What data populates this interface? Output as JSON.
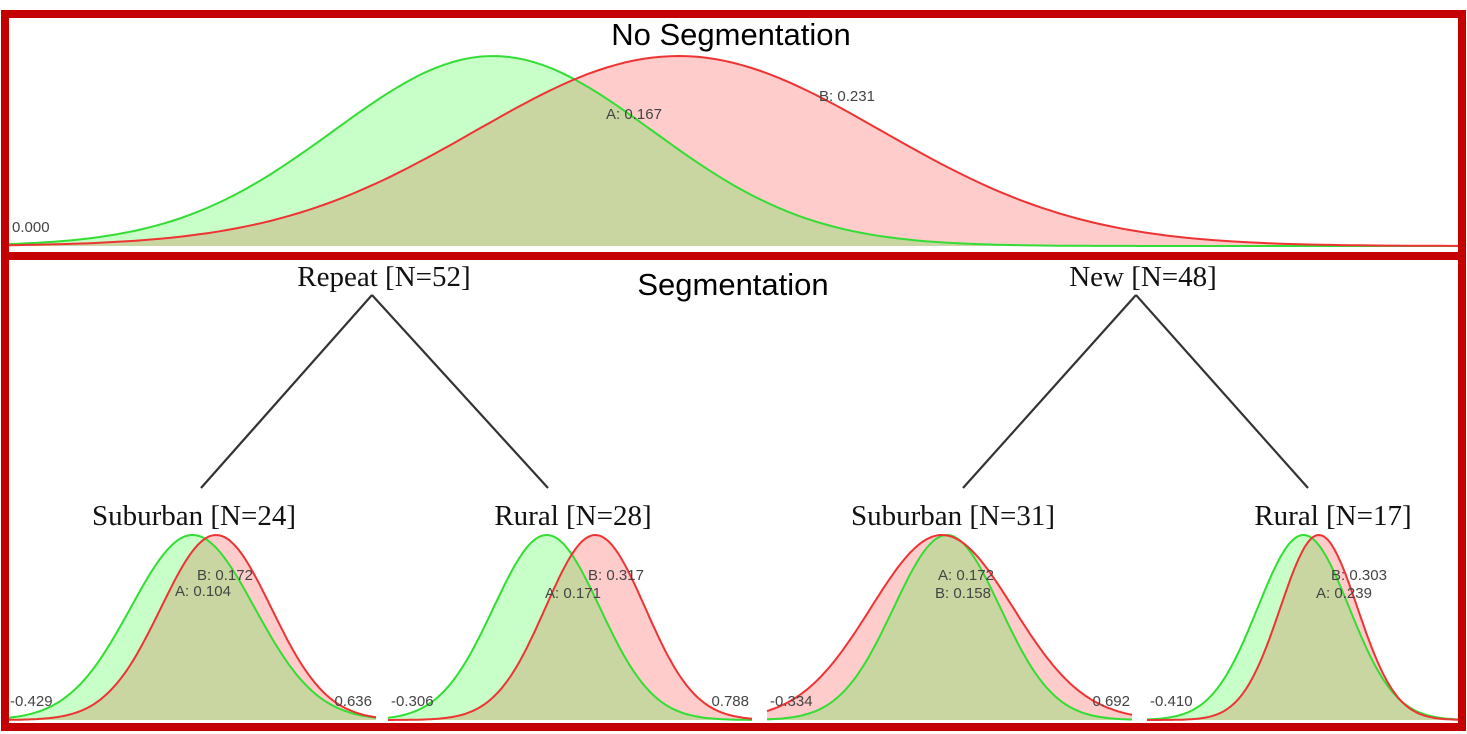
{
  "panels": {
    "top": {
      "title": "No Segmentation"
    },
    "bottom": {
      "title": "Segmentation"
    }
  },
  "tree": {
    "groups": [
      {
        "label": "Repeat [N=52]"
      },
      {
        "label": "New [N=48]"
      }
    ],
    "leaves": [
      {
        "label": "Suburban [N=24]"
      },
      {
        "label": "Rural [N=28]"
      },
      {
        "label": "Suburban [N=31]"
      },
      {
        "label": "Rural [N=17]"
      }
    ]
  },
  "colors": {
    "frame": "#c40000",
    "A_line": "#33dd33",
    "A_fill": "#c8ffc8",
    "B_line": "#ee3333",
    "B_fill": "#ffcccc",
    "overlap_fill": "#c9d6a1"
  },
  "chart_data": [
    {
      "type": "area",
      "title": "No Segmentation",
      "series": [
        {
          "name": "A",
          "mean": 0.167,
          "sd": 0.055,
          "label": "A: 0.167"
        },
        {
          "name": "B",
          "mean": 0.231,
          "sd": 0.07,
          "label": "B: 0.231"
        }
      ],
      "xlim": [
        0.0,
        0.5
      ],
      "tick_labels": [
        "0.000"
      ]
    },
    {
      "type": "area",
      "title": "Suburban [N=24]",
      "series": [
        {
          "name": "A",
          "mean": 0.104,
          "sd": 0.18,
          "label": "A: 0.104"
        },
        {
          "name": "B",
          "mean": 0.172,
          "sd": 0.16,
          "label": "B: 0.172"
        }
      ],
      "xlim": [
        -0.429,
        0.636
      ],
      "tick_labels": [
        "-0.429",
        "0.636"
      ]
    },
    {
      "type": "area",
      "title": "Rural [N=28]",
      "series": [
        {
          "name": "A",
          "mean": 0.171,
          "sd": 0.16,
          "label": "A: 0.171"
        },
        {
          "name": "B",
          "mean": 0.317,
          "sd": 0.15,
          "label": "B: 0.317"
        }
      ],
      "xlim": [
        -0.306,
        0.788
      ],
      "tick_labels": [
        "-0.306",
        "0.788"
      ]
    },
    {
      "type": "area",
      "title": "Suburban [N=31]",
      "series": [
        {
          "name": "A",
          "mean": 0.172,
          "sd": 0.15,
          "label": "A: 0.172"
        },
        {
          "name": "B",
          "mean": 0.158,
          "sd": 0.2,
          "label": "B: 0.158"
        }
      ],
      "xlim": [
        -0.334,
        0.692
      ],
      "tick_labels": [
        "-0.334",
        "0.692"
      ]
    },
    {
      "type": "area",
      "title": "Rural [N=17]",
      "series": [
        {
          "name": "A",
          "mean": 0.239,
          "sd": 0.19,
          "label": "A: 0.239"
        },
        {
          "name": "B",
          "mean": 0.303,
          "sd": 0.16,
          "label": "B: 0.303"
        }
      ],
      "xlim": [
        -0.41,
        0.88
      ],
      "tick_labels": [
        "-0.410"
      ]
    }
  ]
}
